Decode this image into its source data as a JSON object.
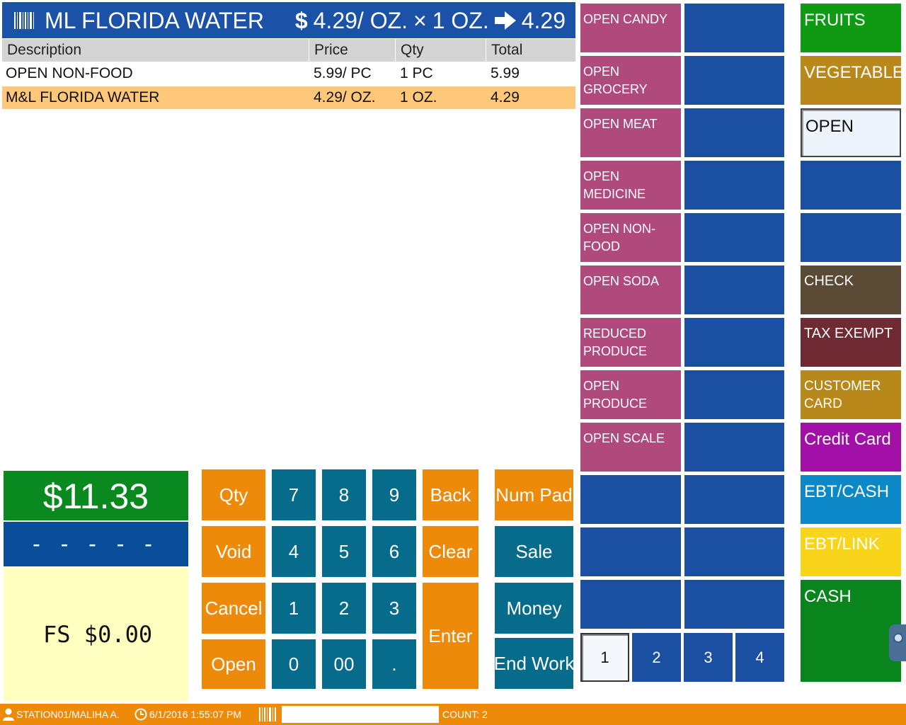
{
  "header": {
    "item_name": "ML FLORIDA WATER",
    "dollar_sign": "$",
    "unit_price": "4.29/ OZ.",
    "times": "×",
    "qty": "1 OZ.",
    "result": "4.29"
  },
  "table": {
    "columns": [
      "Description",
      "Price",
      "Qty",
      "Total"
    ],
    "rows": [
      {
        "description": "OPEN NON-FOOD",
        "price": "5.99/ PC",
        "qty": "1  PC",
        "total": "5.99"
      },
      {
        "description": "M&L FLORIDA WATER",
        "price": "4.29/ OZ.",
        "qty": "1 OZ.",
        "total": "4.29"
      }
    ]
  },
  "totals": {
    "total": "$11.33",
    "change": "- - - - -",
    "fs": "FS $0.00"
  },
  "keypad": {
    "qty": "Qty",
    "void": "Void",
    "cancel": "Cancel",
    "open": "Open",
    "k7": "7",
    "k8": "8",
    "k9": "9",
    "k4": "4",
    "k5": "5",
    "k6": "6",
    "k1": "1",
    "k2": "2",
    "k3": "3",
    "k0": "0",
    "k00": "00",
    "dot": ".",
    "back": "Back",
    "clear": "Clear",
    "enter": "Enter"
  },
  "actions": {
    "num_pad": "Num Pad",
    "sale": "Sale",
    "money": "Money",
    "end_work": "End Work"
  },
  "departments": [
    "OPEN CANDY",
    "OPEN GROCERY",
    "OPEN MEAT",
    "OPEN MEDICINE",
    "OPEN NON-FOOD",
    "OPEN SODA",
    "REDUCED PRODUCE",
    "OPEN PRODUCE",
    "OPEN SCALE"
  ],
  "pages": [
    "1",
    "2",
    "3",
    "4"
  ],
  "side": {
    "fruits": "FRUITS",
    "vegetables": "VEGETABLES",
    "open": "OPEN",
    "check": "CHECK",
    "tax_exempt": "TAX EXEMPT",
    "customer_card": "CUSTOMER CARD",
    "credit_card": "Credit Card",
    "ebt_cash": "EBT/CASH",
    "ebt_link": "EBT/LINK",
    "cash": "CASH"
  },
  "status": {
    "station": "STATION01/MALIHA A.",
    "datetime": "6/1/2016 1:55:07 PM",
    "scan_value": "",
    "count": "COUNT: 2"
  },
  "colors": {
    "header_blue": "#1b52a8",
    "orange": "#ee8a0a",
    "teal": "#076b8b",
    "nav_blue": "#1b4fa2",
    "magenta": "#b14a7c",
    "green": "#0a8a1e",
    "selected_row": "#ffc77a"
  }
}
